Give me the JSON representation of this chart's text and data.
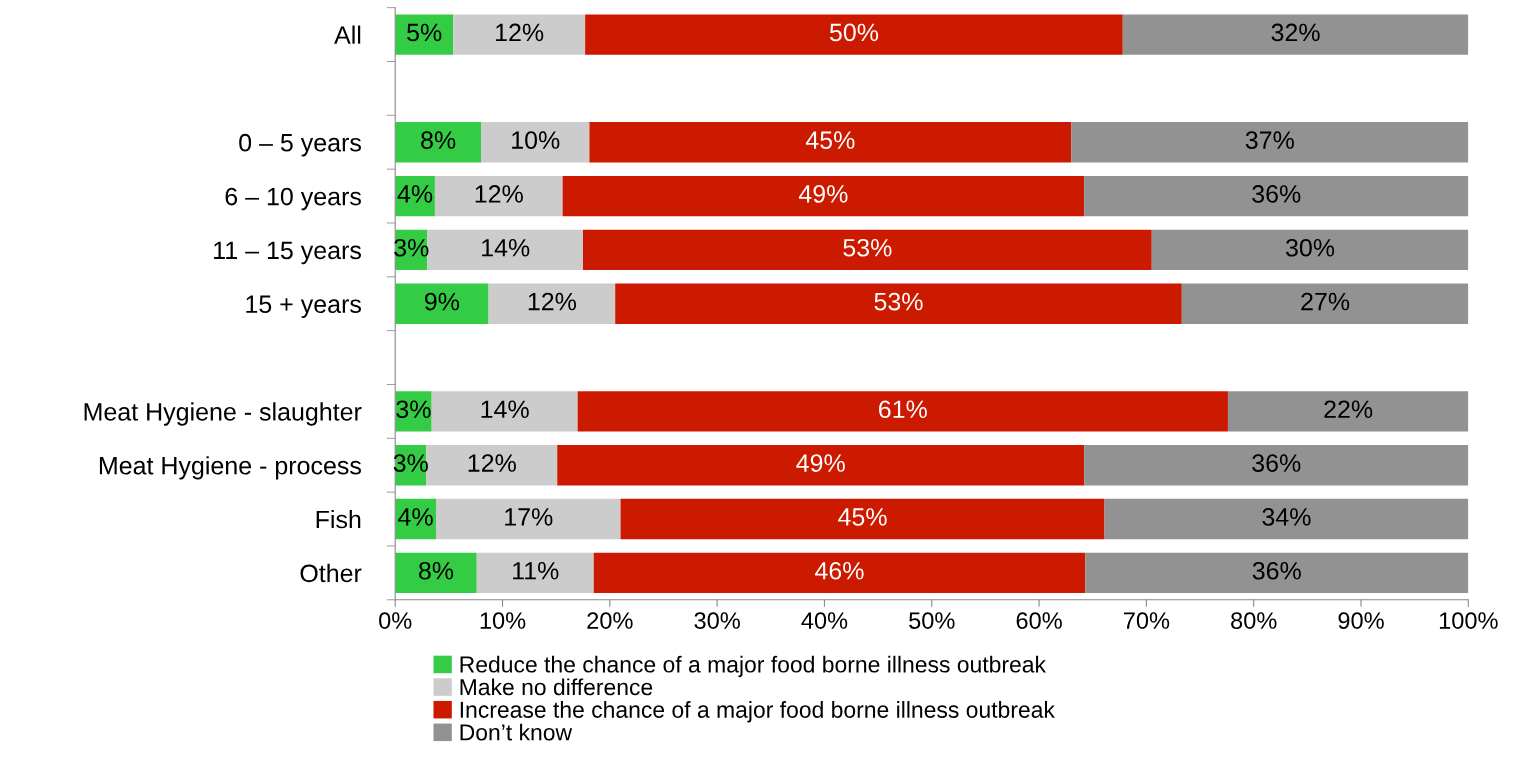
{
  "chart_data": {
    "type": "bar",
    "orientation": "horizontal",
    "stacked": true,
    "categories": [
      "All",
      null,
      "0 – 5 years",
      "6 – 10 years",
      "11 – 15 years",
      "15 + years",
      null,
      "Meat Hygiene - slaughter",
      "Meat Hygiene - process",
      "Fish",
      "Other"
    ],
    "series": [
      {
        "name": "Reduce the chance of a major food borne illness outbreak",
        "color": "#33cc44",
        "values": [
          5.4,
          null,
          8.0,
          3.7,
          3.0,
          8.7,
          null,
          3.4,
          2.9,
          3.8,
          7.6
        ],
        "value_labels": [
          "5%",
          null,
          "8%",
          "4%",
          "3%",
          "9%",
          null,
          "3%",
          "3%",
          "4%",
          "8%"
        ]
      },
      {
        "name": "Make no difference",
        "color": "#cccccc",
        "values": [
          12.3,
          null,
          10.1,
          11.9,
          14.5,
          11.8,
          null,
          13.6,
          12.2,
          17.2,
          10.9
        ],
        "value_labels": [
          "12%",
          null,
          "10%",
          "12%",
          "14%",
          "12%",
          null,
          "14%",
          "12%",
          "17%",
          "11%"
        ]
      },
      {
        "name": "Increase the chance of a major food borne illness outbreak",
        "color": "#cc1a00",
        "values": [
          50.1,
          null,
          44.9,
          48.6,
          53.0,
          52.8,
          null,
          60.6,
          49.1,
          45.1,
          45.8
        ],
        "value_labels": [
          "50%",
          null,
          "45%",
          "49%",
          "53%",
          "53%",
          null,
          "61%",
          "49%",
          "45%",
          "46%"
        ]
      },
      {
        "name": "Don’t know",
        "color": "#929292",
        "values": [
          32.2,
          null,
          37.0,
          35.8,
          29.5,
          26.7,
          null,
          22.4,
          35.8,
          33.9,
          35.7
        ],
        "value_labels": [
          "32%",
          null,
          "37%",
          "36%",
          "30%",
          "27%",
          null,
          "22%",
          "36%",
          "34%",
          "36%"
        ]
      }
    ],
    "xlim": [
      0,
      100
    ],
    "xticks": [
      {
        "value": 0,
        "label": "0%"
      },
      {
        "value": 10,
        "label": "10%"
      },
      {
        "value": 20,
        "label": "20%"
      },
      {
        "value": 30,
        "label": "30%"
      },
      {
        "value": 40,
        "label": "40%"
      },
      {
        "value": 50,
        "label": "50%"
      },
      {
        "value": 60,
        "label": "60%"
      },
      {
        "value": 70,
        "label": "70%"
      },
      {
        "value": 80,
        "label": "80%"
      },
      {
        "value": 90,
        "label": "90%"
      },
      {
        "value": 100,
        "label": "100%"
      }
    ],
    "legend": "bottom",
    "grid": false
  }
}
